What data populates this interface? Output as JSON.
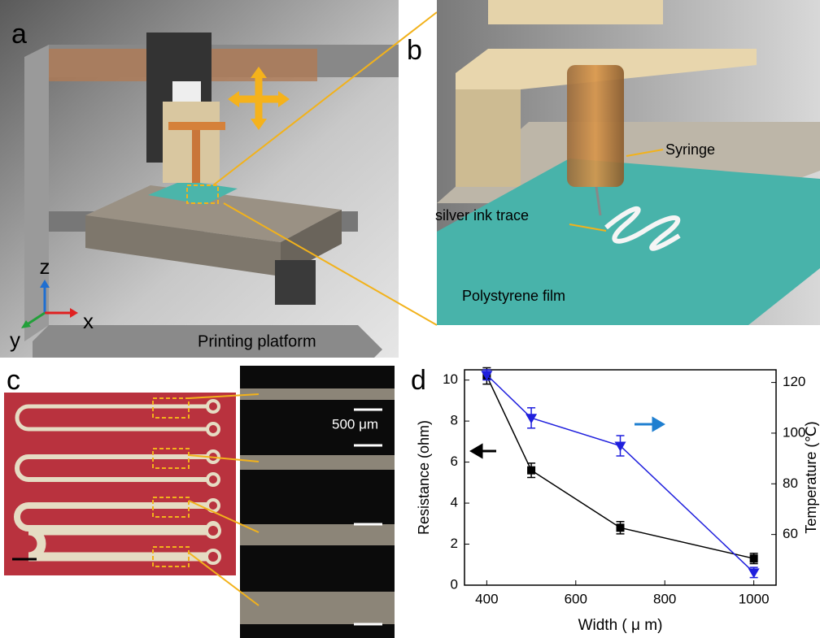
{
  "panels": {
    "a": {
      "label": "a",
      "caption": "Printing platform",
      "axes": {
        "z": "z",
        "x": "x",
        "y": "y"
      }
    },
    "b": {
      "label": "b",
      "annotations": [
        "Syringe",
        "silver ink trace",
        "Polystyrene film"
      ]
    },
    "c": {
      "label": "c",
      "scale_label": "500 μm"
    },
    "d": {
      "label": "d"
    }
  },
  "chart_data": {
    "type": "line",
    "x": [
      400,
      500,
      700,
      1000
    ],
    "xlabel": "Width ( μ m)",
    "ylabel": "Resistance (ohm)",
    "y2label": "Temperature (℃)",
    "xlim": [
      350,
      1050
    ],
    "xticks": [
      400,
      600,
      800,
      1000
    ],
    "ylim": [
      0,
      10.5
    ],
    "yticks": [
      0,
      2,
      4,
      6,
      8,
      10
    ],
    "y2lim": [
      40,
      125
    ],
    "y2ticks": [
      60,
      80,
      100,
      120
    ],
    "series": [
      {
        "color": "#000000",
        "marker": "square",
        "values": [
          10.2,
          5.6,
          2.8,
          1.3
        ],
        "errors": [
          0.4,
          0.35,
          0.3,
          0.25
        ]
      },
      {
        "color": "#1f1fdd",
        "marker": "triangle-down",
        "axis": "y2",
        "values": [
          123,
          106,
          95,
          45
        ],
        "errors": [
          2,
          4,
          4,
          2
        ]
      }
    ]
  }
}
